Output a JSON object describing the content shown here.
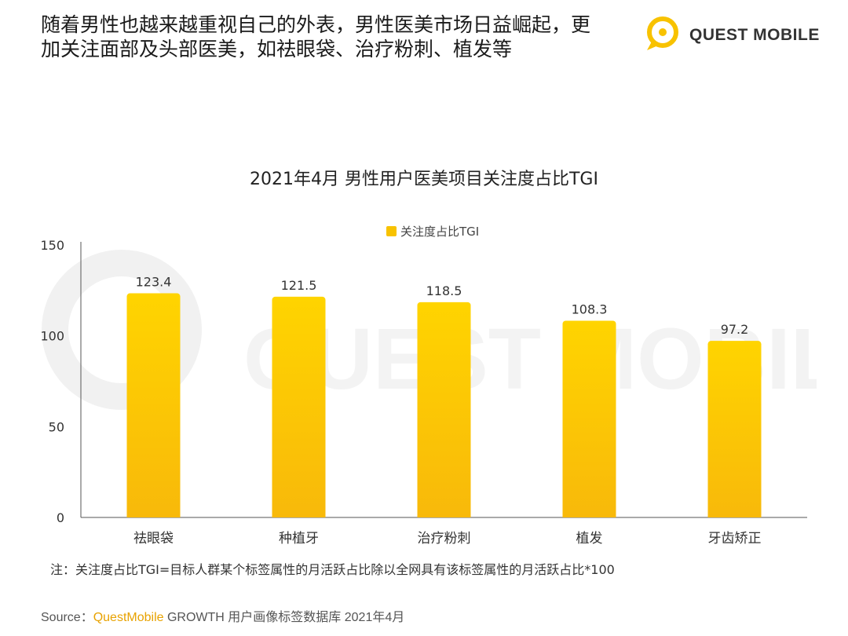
{
  "headline": {
    "line1": "随着男性也越来越重视自己的外表，男性医美市场日益崛起，更",
    "line2": "加关注面部及头部医美，如祛眼袋、治疗粉刺、植发等"
  },
  "logo": {
    "text": "QUEST MOBILE"
  },
  "watermark_text": "QUEST MOBILE",
  "colors": {
    "bar_top": "#ffd400",
    "bar_bottom": "#f8b90a",
    "brand": "#e8a200"
  },
  "chart_data": {
    "type": "bar",
    "title": "2021年4月 男性用户医美项目关注度占比TGI",
    "categories": [
      "祛眼袋",
      "种植牙",
      "治疗粉刺",
      "植发",
      "牙齿矫正"
    ],
    "series": [
      {
        "name": "关注度占比TGI",
        "values": [
          123.4,
          121.5,
          118.5,
          108.3,
          97.2
        ]
      }
    ],
    "ylim": [
      0,
      150
    ],
    "yticks": [
      0,
      50,
      100,
      150
    ],
    "grid": false,
    "legend_position": "top-center",
    "data_labels": true
  },
  "note": "注：关注度占比TGI=目标人群某个标签属性的月活跃占比除以全网具有该标签属性的月活跃占比*100",
  "source": {
    "prefix": "Source：",
    "brand": "QuestMobile",
    "rest": " GROWTH 用户画像标签数据库 2021年4月"
  }
}
